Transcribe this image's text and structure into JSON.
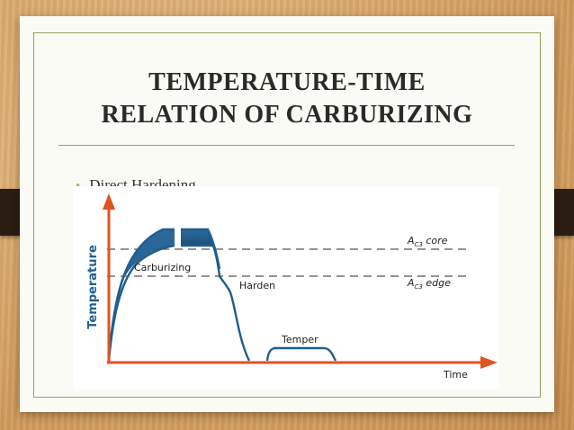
{
  "slide": {
    "title_line1": "TEMPERATURE-TIME",
    "title_line2": "RELATION OF CARBURIZING",
    "bullet": "Direct Hardening"
  },
  "diagram": {
    "y_axis_label": "Temperature",
    "x_axis_label": "Time",
    "stages": {
      "carburizing": "Carburizing",
      "harden": "Harden",
      "temper": "Temper"
    },
    "reference_lines": {
      "core_prefix": "A",
      "core_sub": "C3",
      "core_suffix": " core",
      "edge_prefix": "A",
      "edge_sub": "C3",
      "edge_suffix": " edge"
    }
  },
  "colors": {
    "axis": "#e0531f",
    "curve": "#1f5e8f",
    "band": "#2f6fa0",
    "accent": "#8fa35a",
    "bullet": "#a3b86c"
  }
}
